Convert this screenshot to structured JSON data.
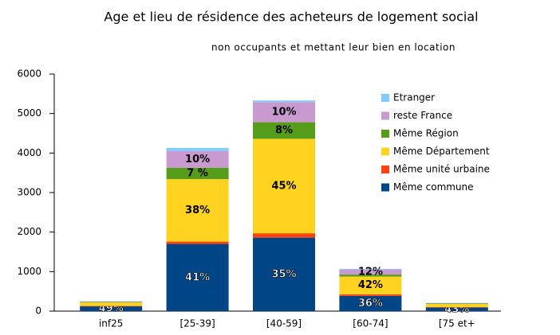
{
  "chart_data": {
    "type": "stacked_bar",
    "title": "Age et lieu de résidence des acheteurs de logement social",
    "subtitle": "non occupants et mettant leur bien en location",
    "categories": [
      "inf25",
      "[25-39]",
      "[40-59]",
      "[60-74]",
      "[75 et+"
    ],
    "series": [
      {
        "name": "Même commune",
        "color": "#004586",
        "values": [
          120,
          1700,
          1860,
          385,
          90
        ],
        "segment_labels": [
          "49%",
          "41%",
          "35%",
          "36%",
          "43%"
        ]
      },
      {
        "name": "Même unité urbaine",
        "color": "#ff420e",
        "values": [
          10,
          60,
          110,
          40,
          10
        ],
        "segment_labels": [
          null,
          null,
          null,
          null,
          null
        ]
      },
      {
        "name": "Même Département",
        "color": "#ffd320",
        "values": [
          90,
          1580,
          2390,
          450,
          80
        ],
        "segment_labels": [
          null,
          "38%",
          "45%",
          "42%",
          null
        ]
      },
      {
        "name": "Même Région",
        "color": "#579d1c",
        "values": [
          15,
          290,
          420,
          50,
          15
        ],
        "segment_labels": [
          null,
          "7 %",
          "8%",
          null,
          null
        ]
      },
      {
        "name": "reste France",
        "color": "#c99ad0",
        "values": [
          10,
          420,
          510,
          130,
          10
        ],
        "segment_labels": [
          null,
          "10%",
          "10%",
          "12%",
          null
        ]
      },
      {
        "name": "Etranger",
        "color": "#83caff",
        "values": [
          5,
          80,
          40,
          15,
          5
        ],
        "segment_labels": [
          null,
          null,
          null,
          null,
          null
        ]
      }
    ],
    "ylim": [
      0,
      6000
    ],
    "yticks": [
      0,
      1000,
      2000,
      3000,
      4000,
      5000,
      6000
    ],
    "legend": "top-right"
  }
}
